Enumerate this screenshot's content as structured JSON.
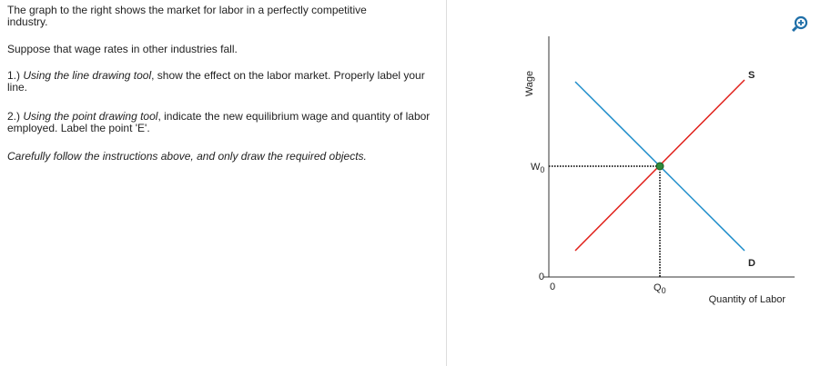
{
  "instructions": {
    "intro": "The graph to the right shows the market for labor in a perfectly competitive industry.",
    "scenario": "Suppose that wage rates in other industries fall.",
    "step1": {
      "number": "1.)",
      "tool": "Using the line drawing tool",
      "task": ", show the effect on the labor market. Properly label your line."
    },
    "step2": {
      "number": "2.)",
      "tool": "Using the point drawing tool",
      "task": ", indicate the new equilibrium wage and quantity of labor employed. Label the point 'E'."
    },
    "note": "Carefully follow the instructions above, and only draw the required objects."
  },
  "graph": {
    "y_axis_label": "Wage",
    "x_axis_label": "Quantity of Labor",
    "y_origin": "0",
    "x_origin": "0",
    "wage_label": {
      "letter": "W",
      "sub": "0"
    },
    "quantity_label": {
      "letter": "Q",
      "sub": "0"
    },
    "supply_label": "S",
    "demand_label": "D"
  }
}
